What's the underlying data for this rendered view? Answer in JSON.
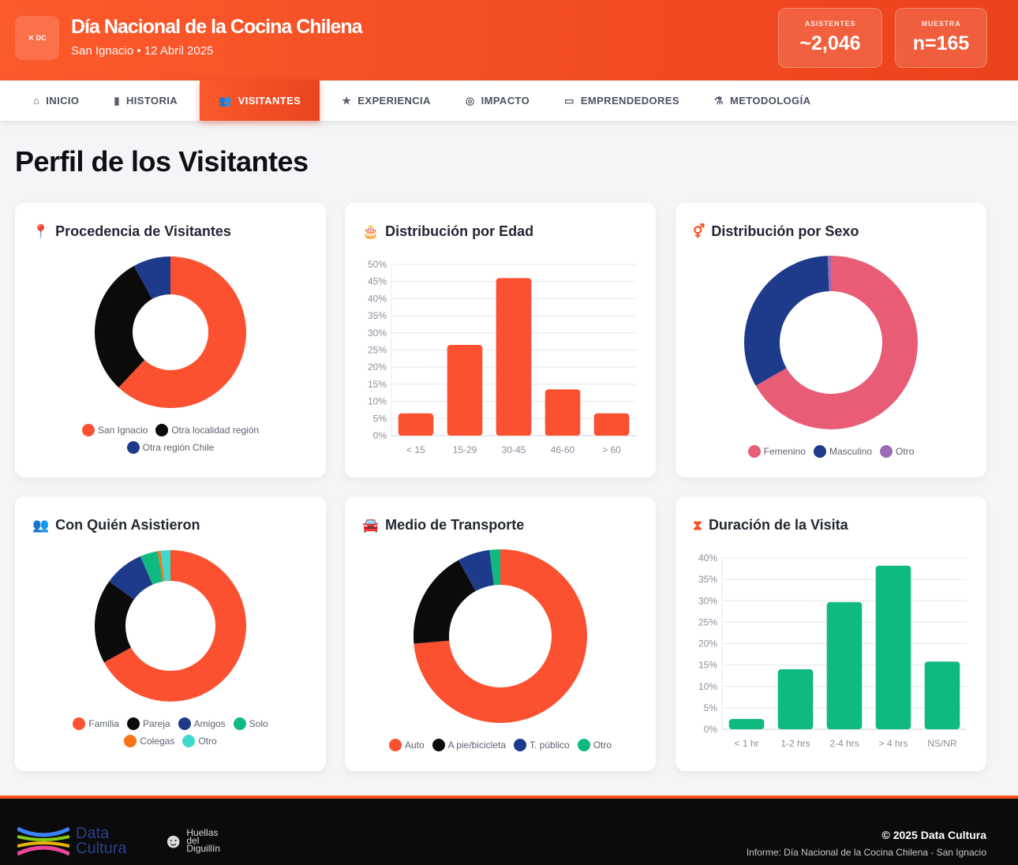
{
  "header": {
    "logo_text": "Data Cultura",
    "title": "Día Nacional de la Cocina Chilena",
    "subtitle": "San Ignacio • 12 Abril 2025",
    "stats": [
      {
        "label": "ASISTENTES",
        "value": "~2,046"
      },
      {
        "label": "MUESTRA",
        "value": "n=165"
      }
    ]
  },
  "nav": {
    "items": [
      {
        "label": "INICIO",
        "icon": "home-icon",
        "active": false
      },
      {
        "label": "HISTORIA",
        "icon": "book-icon",
        "active": false
      },
      {
        "label": "VISITANTES",
        "icon": "users-icon",
        "active": true
      },
      {
        "label": "EXPERIENCIA",
        "icon": "star-icon",
        "active": false
      },
      {
        "label": "IMPACTO",
        "icon": "coins-icon",
        "active": false
      },
      {
        "label": "EMPRENDEDORES",
        "icon": "store-icon",
        "active": false
      },
      {
        "label": "METODOLOGÍA",
        "icon": "flask-icon",
        "active": false
      }
    ]
  },
  "page": {
    "title": "Perfil de los Visitantes"
  },
  "colors": {
    "accent": "#f4511e",
    "navy": "#1e3a8a",
    "green": "#10b981",
    "pink": "#e85d75"
  },
  "chart_data": [
    {
      "type": "pie",
      "title": "Procedencia de Visitantes",
      "icon": "map-pin-icon",
      "donut": true,
      "categories": [
        "San Ignacio",
        "Otra localidad región",
        "Otra región Chile"
      ],
      "values": [
        62,
        30,
        8
      ],
      "colors": [
        "#fb5130",
        "#0b0b0b",
        "#1e3a8a"
      ],
      "legend": "bottom"
    },
    {
      "type": "bar",
      "title": "Distribución por Edad",
      "icon": "cake-icon",
      "categories": [
        "< 15",
        "15-29",
        "30-45",
        "46-60",
        "> 60"
      ],
      "values": [
        6.5,
        26.5,
        46,
        13.5,
        6.5
      ],
      "ylim": [
        0,
        50
      ],
      "yticks": [
        "0%",
        "5%",
        "10%",
        "15%",
        "20%",
        "25%",
        "30%",
        "35%",
        "40%",
        "45%",
        "50%"
      ],
      "color": "#fb5130",
      "grid": true
    },
    {
      "type": "pie",
      "title": "Distribución por Sexo",
      "icon": "gender-icon",
      "donut": true,
      "categories": [
        "Femenino",
        "Masculino",
        "Otro"
      ],
      "values": [
        66.7,
        32.7,
        0.6
      ],
      "colors": [
        "#e85d75",
        "#1e3a8a",
        "#9b6bb8"
      ],
      "legend": "bottom"
    },
    {
      "type": "pie",
      "title": "Con Quién Asistieron",
      "icon": "user-group-icon",
      "donut": true,
      "categories": [
        "Familia",
        "Pareja",
        "Amigos",
        "Solo",
        "Colegas",
        "Otro"
      ],
      "values": [
        67,
        18,
        8.5,
        3.8,
        0.6,
        2.1
      ],
      "colors": [
        "#fb5130",
        "#0b0b0b",
        "#1e3a8a",
        "#10b981",
        "#f97316",
        "#40d9c9"
      ],
      "legend": "bottom"
    },
    {
      "type": "pie",
      "title": "Medio de Transporte",
      "icon": "car-icon",
      "donut": true,
      "categories": [
        "Auto",
        "A pie/bicicleta",
        "T. público",
        "Otro"
      ],
      "values": [
        73.6,
        18.4,
        6,
        2
      ],
      "colors": [
        "#fb5130",
        "#0b0b0b",
        "#1e3a8a",
        "#10b981"
      ],
      "legend": "bottom"
    },
    {
      "type": "bar",
      "title": "Duración de la Visita",
      "icon": "hourglass-icon",
      "categories": [
        "< 1 hr",
        "1-2 hrs",
        "2-4 hrs",
        "> 4 hrs",
        "NS/NR"
      ],
      "values": [
        2.4,
        14,
        29.7,
        38.2,
        15.8
      ],
      "ylim": [
        0,
        40
      ],
      "yticks": [
        "0%",
        "5%",
        "10%",
        "15%",
        "20%",
        "25%",
        "30%",
        "35%",
        "40%"
      ],
      "color": "#10b981",
      "grid": true
    }
  ],
  "footer": {
    "logo1": "Data Cultura",
    "logo2": "Huellas del Diguillín",
    "copyright": "© 2025 Data Cultura",
    "info": "Informe: Día Nacional de la Cocina Chilena - San Ignacio"
  }
}
